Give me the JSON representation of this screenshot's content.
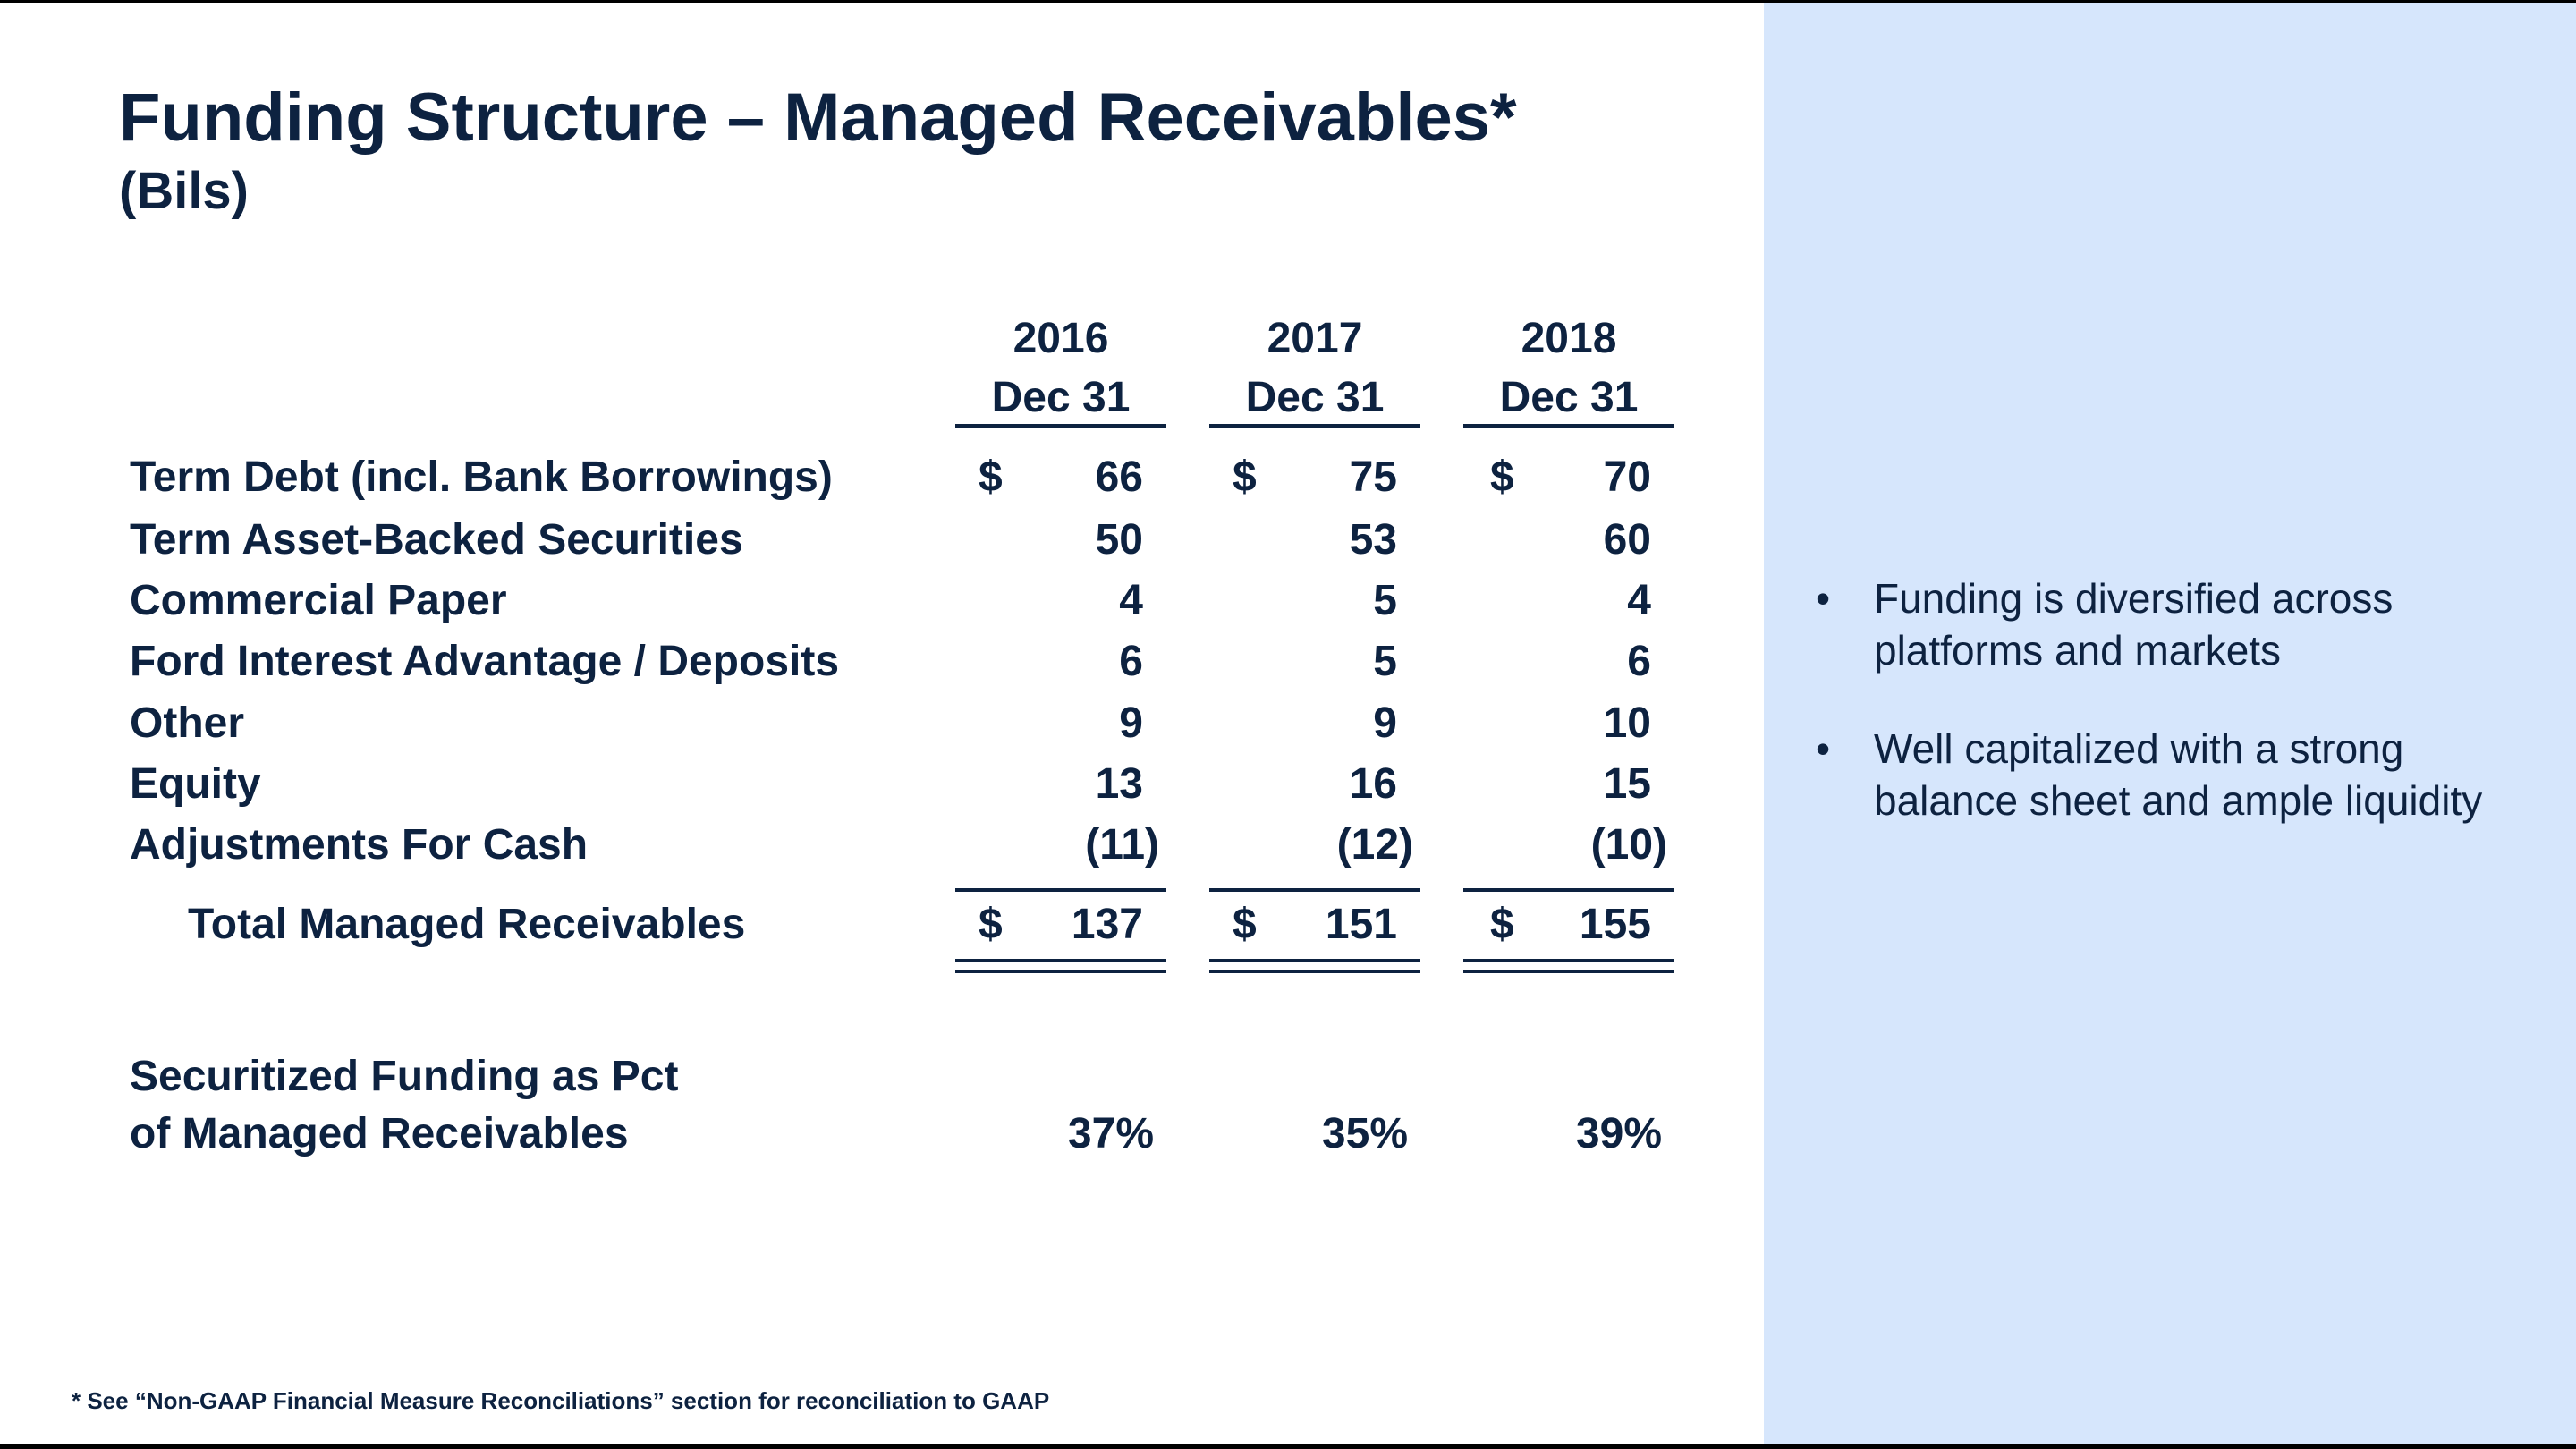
{
  "title": "Funding Structure – Managed Receivables*",
  "subtitle": "(Bils)",
  "columns": [
    {
      "year": "2016",
      "date": "Dec 31"
    },
    {
      "year": "2017",
      "date": "Dec 31"
    },
    {
      "year": "2018",
      "date": "Dec 31"
    }
  ],
  "currency_symbol": "$",
  "rows": [
    {
      "label": "Term Debt (incl. Bank Borrowings)",
      "values": [
        "66",
        "75",
        "70"
      ]
    },
    {
      "label": "Term Asset-Backed Securities",
      "values": [
        "50",
        "53",
        "60"
      ]
    },
    {
      "label": "Commercial Paper",
      "values": [
        "4",
        "5",
        "4"
      ]
    },
    {
      "label": "Ford Interest Advantage / Deposits",
      "values": [
        "6",
        "5",
        "6"
      ]
    },
    {
      "label": "Other",
      "values": [
        "9",
        "9",
        "10"
      ]
    },
    {
      "label": "Equity",
      "values": [
        "13",
        "16",
        "15"
      ]
    },
    {
      "label": "Adjustments For Cash",
      "values": [
        "(11)",
        "(12)",
        "(10)"
      ]
    }
  ],
  "total": {
    "label": "Total Managed Receivables",
    "values": [
      "137",
      "151",
      "155"
    ]
  },
  "securitized": {
    "label_line1": "Securitized Funding as Pct",
    "label_line2": "of Managed Receivables",
    "values": [
      "37%",
      "35%",
      "39%"
    ]
  },
  "bullets": [
    "Funding is diversified across platforms and markets",
    "Well capitalized with a strong balance sheet and ample liquidity"
  ],
  "bullet_char": "•",
  "footnote": "*   See “Non-GAAP Financial Measure Reconciliations” section for reconciliation to GAAP",
  "colors": {
    "text": "#0d2240",
    "panel": "#d6e6fc"
  }
}
